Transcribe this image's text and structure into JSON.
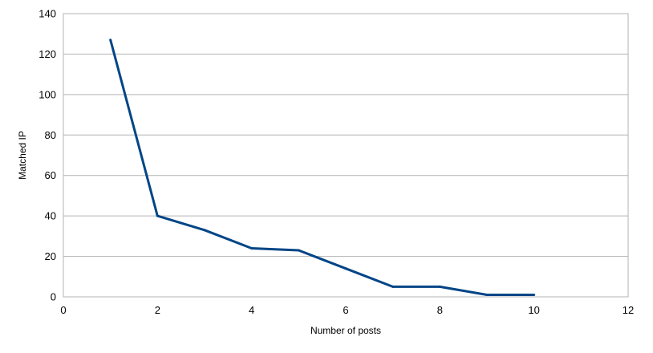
{
  "chart_data": {
    "type": "line",
    "title": "",
    "xlabel": "Number of posts",
    "ylabel": "Matched IP",
    "xlim": [
      0,
      12
    ],
    "ylim": [
      0,
      140
    ],
    "xticks": [
      0,
      2,
      4,
      6,
      8,
      10,
      12
    ],
    "yticks": [
      0,
      20,
      40,
      60,
      80,
      100,
      120,
      140
    ],
    "grid": "horizontal",
    "legend": "none",
    "series": [
      {
        "color": "#004586",
        "x": [
          1,
          2,
          3,
          4,
          5,
          6,
          7,
          8,
          9,
          10
        ],
        "y": [
          127,
          40,
          33,
          24,
          23,
          14,
          5,
          5,
          1,
          1
        ]
      }
    ]
  }
}
